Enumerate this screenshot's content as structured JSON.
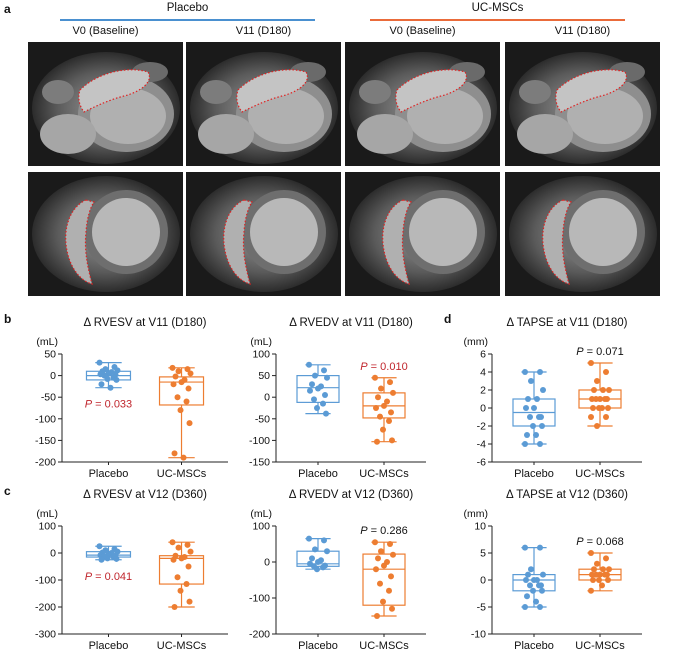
{
  "panels": {
    "a": {
      "letter": "a",
      "groups": [
        {
          "name": "Placebo",
          "color": "#4a90d0"
        },
        {
          "name": "UC-MSCs",
          "color": "#ea6b3a"
        }
      ],
      "columns": [
        "V0 (Baseline)",
        "V11 (D180)",
        "V0 (Baseline)",
        "V11 (D180)"
      ],
      "image_rows": [
        "four-chamber cine MRI",
        "short-axis cine MRI"
      ]
    },
    "b": {
      "letter": "b"
    },
    "c": {
      "letter": "c"
    },
    "d": {
      "letter": "d"
    }
  },
  "colors": {
    "placebo": "#5b9bd5",
    "ucmsc": "#ed7d31",
    "significant": "#c0262d"
  },
  "chart_data": [
    {
      "id": "b1",
      "type": "box",
      "title": "Δ  RVESV at V11 (D180)",
      "unit": "(mL)",
      "ylim": [
        -200,
        50
      ],
      "yticks": [
        50,
        0,
        -50,
        -100,
        -150,
        -200
      ],
      "categories": [
        "Placebo",
        "UC-MSCs"
      ],
      "pvalue": "P = 0.033",
      "p_significant": true,
      "p_group": 0,
      "groups": [
        {
          "name": "Placebo",
          "box": {
            "min": -28,
            "q1": -10,
            "median": 0,
            "q3": 10,
            "max": 30
          },
          "points": [
            30,
            20,
            15,
            12,
            10,
            8,
            5,
            3,
            2,
            0,
            -5,
            -8,
            -10,
            -20,
            -28
          ]
        },
        {
          "name": "UC-MSCs",
          "box": {
            "min": -190,
            "q1": -68,
            "median": -15,
            "q3": -3,
            "max": 18
          },
          "points": [
            18,
            15,
            10,
            5,
            -2,
            -10,
            -15,
            -20,
            -30,
            -50,
            -60,
            -80,
            -110,
            -180,
            -190
          ]
        }
      ]
    },
    {
      "id": "b2",
      "type": "box",
      "title": "Δ  RVEDV at V11 (D180)",
      "unit": "(mL)",
      "ylim": [
        -150,
        100
      ],
      "yticks": [
        100,
        50,
        0,
        -50,
        -100,
        -150
      ],
      "categories": [
        "Placebo",
        "UC-MSCs"
      ],
      "pvalue": "P = 0.010",
      "p_significant": true,
      "p_group": 1,
      "groups": [
        {
          "name": "Placebo",
          "box": {
            "min": -38,
            "q1": -12,
            "median": 22,
            "q3": 50,
            "max": 75
          },
          "points": [
            75,
            62,
            50,
            45,
            30,
            25,
            20,
            15,
            5,
            -5,
            -15,
            -25,
            -38
          ]
        },
        {
          "name": "UC-MSCs",
          "box": {
            "min": -103,
            "q1": -48,
            "median": -20,
            "q3": 10,
            "max": 45
          },
          "points": [
            45,
            35,
            20,
            10,
            0,
            -10,
            -20,
            -25,
            -35,
            -45,
            -55,
            -75,
            -100,
            -103
          ]
        }
      ]
    },
    {
      "id": "c1",
      "type": "box",
      "title": "Δ  RVESV at V12 (D360)",
      "unit": "(mL)",
      "ylim": [
        -300,
        100
      ],
      "yticks": [
        100,
        0,
        -100,
        -200,
        -300
      ],
      "categories": [
        "Placebo",
        "UC-MSCs"
      ],
      "pvalue": "P = 0.041",
      "p_significant": true,
      "p_group": 0,
      "groups": [
        {
          "name": "Placebo",
          "box": {
            "min": -25,
            "q1": -15,
            "median": -8,
            "q3": 5,
            "max": 25
          },
          "points": [
            25,
            15,
            10,
            5,
            2,
            0,
            -5,
            -8,
            -10,
            -12,
            -15,
            -20,
            -22,
            -25
          ]
        },
        {
          "name": "UC-MSCs",
          "box": {
            "min": -200,
            "q1": -115,
            "median": -20,
            "q3": -10,
            "max": 40
          },
          "points": [
            40,
            30,
            20,
            5,
            -10,
            -15,
            -20,
            -25,
            -50,
            -90,
            -115,
            -140,
            -180,
            -200
          ]
        }
      ]
    },
    {
      "id": "c2",
      "type": "box",
      "title": "Δ  RVEDV at V12 (D360)",
      "unit": "(mL)",
      "ylim": [
        -200,
        100
      ],
      "yticks": [
        100,
        0,
        -100,
        -200
      ],
      "categories": [
        "Placebo",
        "UC-MSCs"
      ],
      "pvalue": "P = 0.286",
      "p_significant": false,
      "p_group": 1,
      "groups": [
        {
          "name": "Placebo",
          "box": {
            "min": -20,
            "q1": -12,
            "median": -5,
            "q3": 30,
            "max": 65
          },
          "points": [
            65,
            60,
            35,
            30,
            10,
            5,
            0,
            -5,
            -10,
            -12,
            -15,
            -20
          ]
        },
        {
          "name": "UC-MSCs",
          "box": {
            "min": -150,
            "q1": -120,
            "median": -20,
            "q3": 22,
            "max": 55
          },
          "points": [
            55,
            50,
            30,
            20,
            10,
            0,
            -10,
            -20,
            -40,
            -60,
            -80,
            -110,
            -130,
            -150
          ]
        }
      ]
    },
    {
      "id": "d1",
      "type": "box",
      "title": "Δ  TAPSE at V11 (D180)",
      "unit": "(mm)",
      "ylim": [
        -6,
        6
      ],
      "yticks": [
        6,
        4,
        2,
        0,
        -2,
        -4,
        -6
      ],
      "categories": [
        "Placebo",
        "UC-MSCs"
      ],
      "pvalue": "P = 0.071",
      "p_significant": false,
      "p_group": 1,
      "groups": [
        {
          "name": "Placebo",
          "box": {
            "min": -4,
            "q1": -2,
            "median": -0.5,
            "q3": 1,
            "max": 4
          },
          "points": [
            4,
            4,
            3,
            2,
            1,
            1,
            0,
            0,
            -1,
            -1,
            -1,
            -2,
            -2,
            -3,
            -3,
            -4,
            -4
          ]
        },
        {
          "name": "UC-MSCs",
          "box": {
            "min": -2,
            "q1": 0,
            "median": 1,
            "q3": 2,
            "max": 5
          },
          "points": [
            5,
            4,
            3,
            2,
            2,
            2,
            1,
            1,
            1,
            1,
            1,
            0,
            0,
            0,
            0,
            -1,
            -1,
            -2
          ]
        }
      ]
    },
    {
      "id": "d2",
      "type": "box",
      "title": "Δ  TAPSE at V12 (D360)",
      "unit": "(mm)",
      "ylim": [
        -10,
        10
      ],
      "yticks": [
        10,
        5,
        0,
        -5,
        -10
      ],
      "categories": [
        "Placebo",
        "UC-MSCs"
      ],
      "pvalue": "P = 0.068",
      "p_significant": false,
      "p_group": 1,
      "groups": [
        {
          "name": "Placebo",
          "box": {
            "min": -5,
            "q1": -2,
            "median": 0,
            "q3": 1,
            "max": 6
          },
          "points": [
            6,
            6,
            2,
            1,
            1,
            0,
            0,
            0,
            -1,
            -1,
            -1,
            -2,
            -2,
            -3,
            -4,
            -5,
            -5
          ]
        },
        {
          "name": "UC-MSCs",
          "box": {
            "min": -2,
            "q1": 0,
            "median": 1,
            "q3": 2,
            "max": 5
          },
          "points": [
            5,
            4,
            3,
            2,
            2,
            2,
            1,
            1,
            1,
            1,
            1,
            0,
            0,
            0,
            -1,
            -2
          ]
        }
      ]
    }
  ]
}
